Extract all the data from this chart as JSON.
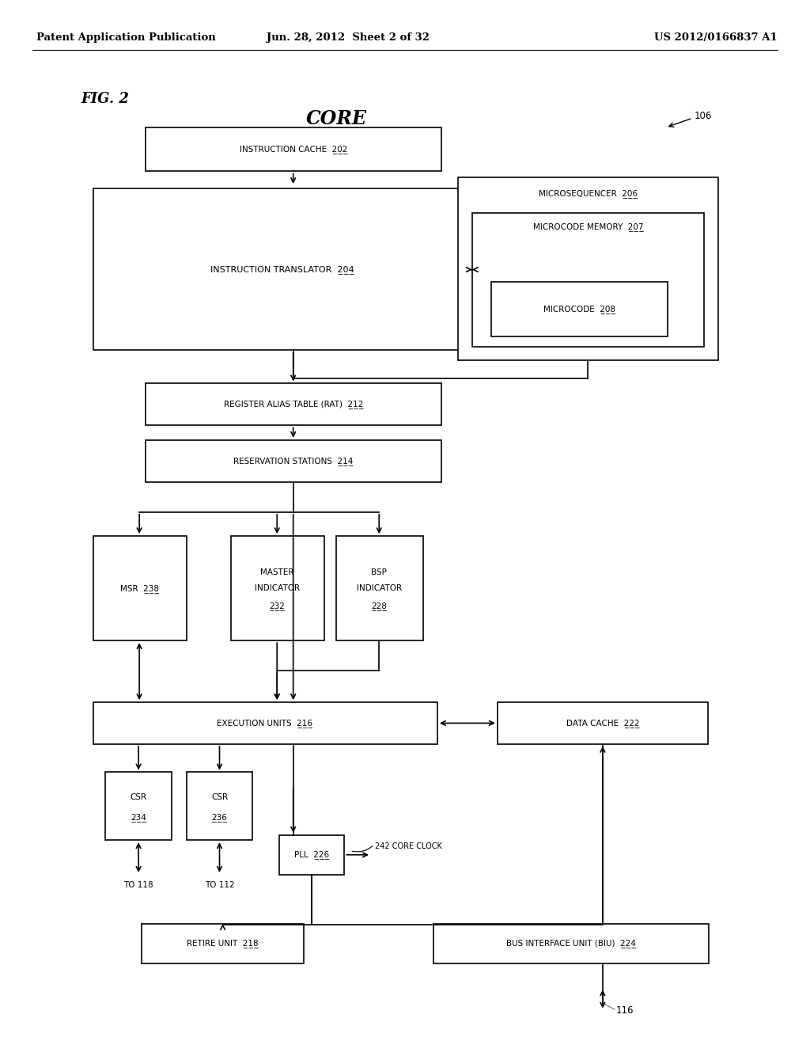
{
  "header_left": "Patent Application Publication",
  "header_mid": "Jun. 28, 2012  Sheet 2 of 32",
  "header_right": "US 2012/0166837 A1",
  "fig_label": "FIG. 2",
  "core_label": "CORE",
  "core_ref": "106",
  "background": "#ffffff"
}
